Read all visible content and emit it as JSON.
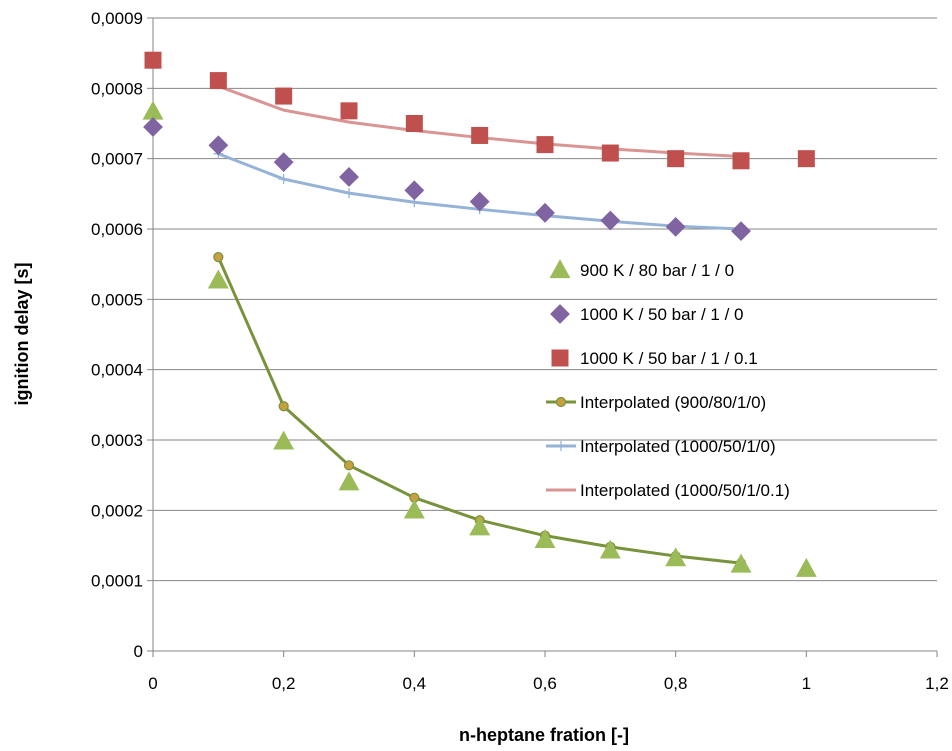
{
  "chart_data": {
    "type": "scatter",
    "xlabel": "n-heptane fration [-]",
    "ylabel": "ignition delay [s]",
    "xlim": [
      0,
      1.2
    ],
    "ylim": [
      0,
      0.0009
    ],
    "x_ticks": [
      "0",
      "0,2",
      "0,4",
      "0,6",
      "0,8",
      "1",
      "1,2"
    ],
    "y_ticks": [
      "0",
      "0,0001",
      "0,0002",
      "0,0003",
      "0,0004",
      "0,0005",
      "0,0006",
      "0,0007",
      "0,0008",
      "0,0009"
    ],
    "grid": "horizontal",
    "legend_position": "right",
    "series": [
      {
        "name": "900 K / 80 bar / 1 / 0",
        "kind": "markers",
        "marker": "triangle",
        "color": "#9bbb59",
        "x": [
          0,
          0.1,
          0.2,
          0.3,
          0.4,
          0.5,
          0.6,
          0.7,
          0.8,
          0.9,
          1.0
        ],
        "y": [
          0.000767,
          0.000527,
          0.000298,
          0.00024,
          0.0002,
          0.000176,
          0.000158,
          0.000143,
          0.000132,
          0.000123,
          0.000117
        ]
      },
      {
        "name": "1000 K / 50 bar / 1 / 0",
        "kind": "markers",
        "marker": "diamond",
        "color": "#8064a2",
        "x": [
          0,
          0.1,
          0.2,
          0.3,
          0.4,
          0.5,
          0.6,
          0.7,
          0.8,
          0.9
        ],
        "y": [
          0.000745,
          0.000719,
          0.000695,
          0.000674,
          0.000655,
          0.000639,
          0.000623,
          0.000612,
          0.000603,
          0.000597
        ]
      },
      {
        "name": "1000 K / 50 bar / 1 / 0.1",
        "kind": "markers",
        "marker": "square",
        "color": "#c0504d",
        "x": [
          0,
          0.1,
          0.2,
          0.3,
          0.4,
          0.5,
          0.6,
          0.7,
          0.8,
          0.9,
          1.0
        ],
        "y": [
          0.00084,
          0.000811,
          0.000789,
          0.000768,
          0.00075,
          0.000733,
          0.00072,
          0.000708,
          0.0007,
          0.000697,
          0.0007
        ]
      },
      {
        "name": "Interpolated (900/80/1/0)",
        "kind": "line",
        "marker": "circle",
        "color": "#77933c",
        "marker_fill": "#c8a040",
        "x": [
          0.1,
          0.2,
          0.3,
          0.4,
          0.5,
          0.6,
          0.7,
          0.8,
          0.9
        ],
        "y": [
          0.00056,
          0.000348,
          0.000264,
          0.000218,
          0.000186,
          0.000164,
          0.000148,
          0.000135,
          0.000125
        ]
      },
      {
        "name": "Interpolated (1000/50/1/0)",
        "kind": "line",
        "marker": "plus",
        "color": "#95b3d7",
        "x": [
          0.1,
          0.2,
          0.3,
          0.4,
          0.5,
          0.6,
          0.7,
          0.8,
          0.9
        ],
        "y": [
          0.000707,
          0.000671,
          0.000651,
          0.000638,
          0.000628,
          0.000619,
          0.000611,
          0.000604,
          0.0006
        ]
      },
      {
        "name": "Interpolated (1000/50/1/0.1)",
        "kind": "line",
        "marker": "none",
        "color": "#d99594",
        "x": [
          0.1,
          0.2,
          0.3,
          0.4,
          0.5,
          0.6,
          0.7,
          0.8,
          0.9
        ],
        "y": [
          0.000803,
          0.000769,
          0.000752,
          0.00074,
          0.00073,
          0.000721,
          0.000714,
          0.000708,
          0.000703
        ]
      }
    ]
  }
}
